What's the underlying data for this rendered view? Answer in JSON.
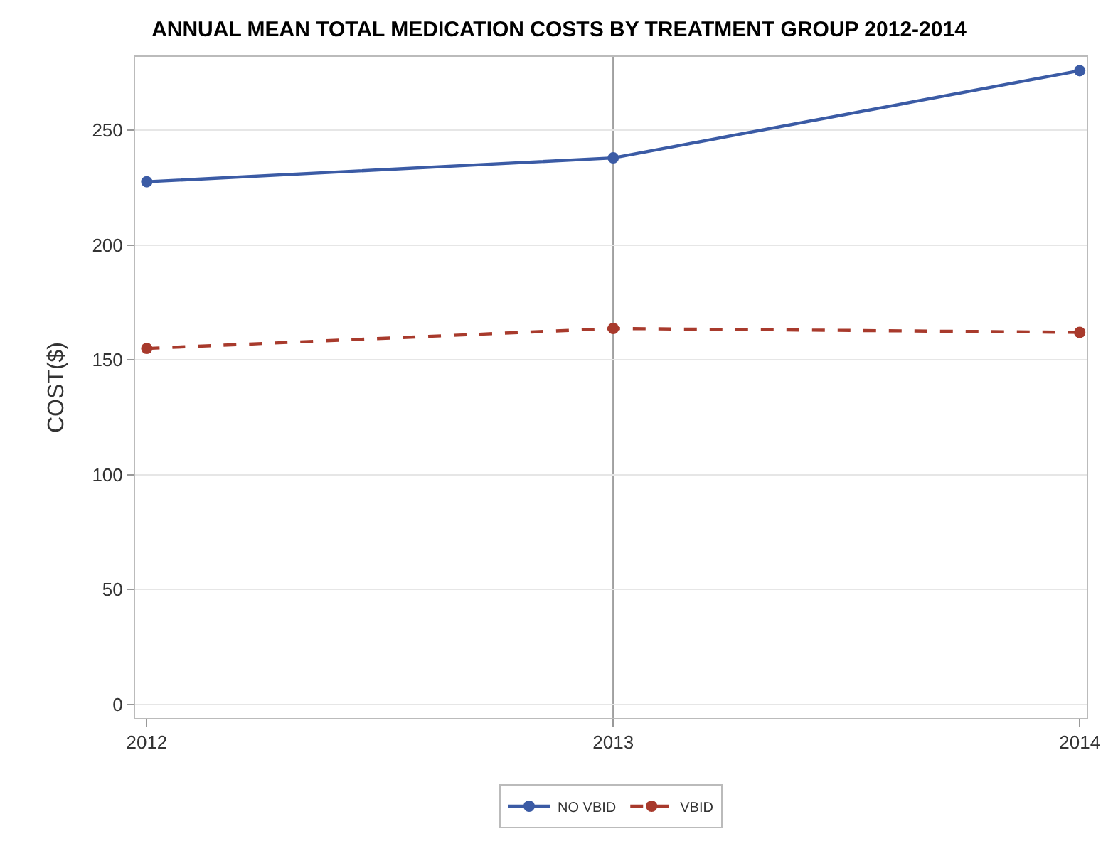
{
  "chart_data": {
    "type": "line",
    "title": "ANNUAL MEAN TOTAL MEDICATION COSTS BY TREATMENT GROUP 2012-2014",
    "ylabel": "COST($)",
    "x": [
      2012,
      2013,
      2014
    ],
    "series": [
      {
        "name": "NO VBID",
        "color": "#3b5ba5",
        "values": [
          227.6,
          238,
          276
        ],
        "line_style": "solid"
      },
      {
        "name": "VBID",
        "color": "#a83a2c",
        "values": [
          155,
          163.7,
          162
        ],
        "line_style": "dashed"
      }
    ],
    "xlim": [
      2011.975,
      2014.015
    ],
    "xticks": [
      2012,
      2013,
      2014
    ],
    "ylim": [
      -6,
      282
    ],
    "yticks": [
      0,
      50,
      100,
      150,
      200,
      250
    ],
    "ref_lines": [
      {
        "axis": "x",
        "value": 2013,
        "color": "#a0a0a0"
      }
    ],
    "grid": "y",
    "legend": "bottom",
    "marker": "circle"
  }
}
